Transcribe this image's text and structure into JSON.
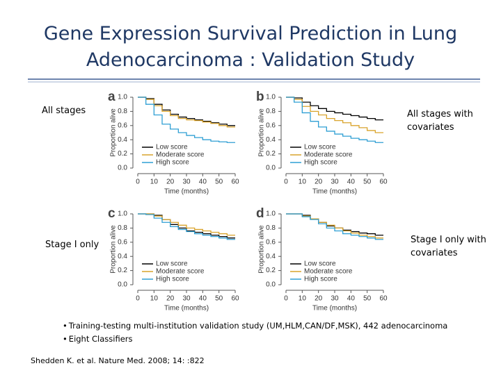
{
  "title": "Gene Expression Survival Prediction in Lung Adenocarcinoma : Validation Study",
  "bullets": [
    "Training-testing multi-institution validation study (UM,HLM,CAN/DF,MSK), 442 adenocarcinoma",
    "Eight Classifiers"
  ],
  "citation": "Shedden K. et al. Nature Med. 2008; 14: :822",
  "chart_data": [
    {
      "type": "line",
      "panel": "a",
      "title": "All stages",
      "xlabel": "Time (months)",
      "ylabel": "Proportion alive",
      "x": [
        0,
        5,
        10,
        15,
        20,
        25,
        30,
        35,
        40,
        45,
        50,
        55,
        60
      ],
      "series": [
        {
          "name": "Low score",
          "color": "#000000",
          "values": [
            1.0,
            0.98,
            0.9,
            0.82,
            0.76,
            0.72,
            0.7,
            0.68,
            0.66,
            0.64,
            0.62,
            0.6,
            0.6
          ]
        },
        {
          "name": "Moderate score",
          "color": "#d9a32b",
          "values": [
            1.0,
            0.97,
            0.88,
            0.8,
            0.74,
            0.7,
            0.68,
            0.67,
            0.65,
            0.63,
            0.6,
            0.58,
            0.58
          ]
        },
        {
          "name": "High score",
          "color": "#2e9fd4",
          "values": [
            1.0,
            0.9,
            0.75,
            0.62,
            0.55,
            0.5,
            0.46,
            0.43,
            0.4,
            0.38,
            0.37,
            0.36,
            0.36
          ]
        }
      ],
      "xlim": [
        0,
        60
      ],
      "xticks": [
        0,
        10,
        20,
        30,
        40,
        50,
        60
      ],
      "ylim": [
        0,
        1
      ],
      "yticks": [
        {
          "value": 0,
          "label": "0.0"
        },
        0.2,
        0.4,
        0.6,
        0.8,
        {
          "value": 1,
          "label": "1.0"
        }
      ],
      "grid": false,
      "step": true,
      "legend": "lower left"
    },
    {
      "type": "line",
      "panel": "b",
      "title": "All stages with covariates",
      "xlabel": "Time (months)",
      "ylabel": "Proportion alive",
      "x": [
        0,
        5,
        10,
        15,
        20,
        25,
        30,
        35,
        40,
        45,
        50,
        55,
        60
      ],
      "series": [
        {
          "name": "Low score",
          "color": "#000000",
          "values": [
            1.0,
            0.99,
            0.93,
            0.88,
            0.84,
            0.8,
            0.78,
            0.76,
            0.74,
            0.72,
            0.7,
            0.68,
            0.68
          ]
        },
        {
          "name": "Moderate score",
          "color": "#d9a32b",
          "values": [
            1.0,
            0.97,
            0.87,
            0.8,
            0.75,
            0.7,
            0.67,
            0.64,
            0.6,
            0.57,
            0.53,
            0.5,
            0.5
          ]
        },
        {
          "name": "High score",
          "color": "#2e9fd4",
          "values": [
            1.0,
            0.93,
            0.78,
            0.66,
            0.58,
            0.52,
            0.48,
            0.45,
            0.42,
            0.4,
            0.38,
            0.36,
            0.36
          ]
        }
      ],
      "xlim": [
        0,
        60
      ],
      "xticks": [
        0,
        10,
        20,
        30,
        40,
        50,
        60
      ],
      "ylim": [
        0,
        1
      ],
      "yticks": [
        {
          "value": 0,
          "label": "0.0"
        },
        0.2,
        0.4,
        0.6,
        0.8,
        {
          "value": 1,
          "label": "1.0"
        }
      ],
      "grid": false,
      "step": true,
      "legend": "lower left"
    },
    {
      "type": "line",
      "panel": "c",
      "title": "Stage I only",
      "xlabel": "Time (months)",
      "ylabel": "Proportion alive",
      "x": [
        0,
        5,
        10,
        15,
        20,
        25,
        30,
        35,
        40,
        45,
        50,
        55,
        60
      ],
      "series": [
        {
          "name": "Low score",
          "color": "#000000",
          "values": [
            1.0,
            1.0,
            0.98,
            0.92,
            0.85,
            0.8,
            0.76,
            0.74,
            0.72,
            0.7,
            0.68,
            0.66,
            0.66
          ]
        },
        {
          "name": "Moderate score",
          "color": "#d9a32b",
          "values": [
            1.0,
            1.0,
            0.97,
            0.92,
            0.88,
            0.84,
            0.8,
            0.78,
            0.76,
            0.74,
            0.72,
            0.7,
            0.7
          ]
        },
        {
          "name": "High score",
          "color": "#2e9fd4",
          "values": [
            1.0,
            0.99,
            0.94,
            0.88,
            0.82,
            0.78,
            0.75,
            0.72,
            0.7,
            0.68,
            0.66,
            0.64,
            0.64
          ]
        }
      ],
      "xlim": [
        0,
        60
      ],
      "xticks": [
        0,
        10,
        20,
        30,
        40,
        50,
        60
      ],
      "ylim": [
        0,
        1
      ],
      "yticks": [
        {
          "value": 0,
          "label": "0.0"
        },
        0.2,
        0.4,
        0.6,
        0.8,
        {
          "value": 1,
          "label": "1.0"
        }
      ],
      "grid": false,
      "step": true,
      "legend": "lower left"
    },
    {
      "type": "line",
      "panel": "d",
      "title": "Stage I only with covariates",
      "xlabel": "Time (months)",
      "ylabel": "Proportion alive",
      "x": [
        0,
        5,
        10,
        15,
        20,
        25,
        30,
        35,
        40,
        45,
        50,
        55,
        60
      ],
      "series": [
        {
          "name": "Low score",
          "color": "#000000",
          "values": [
            1.0,
            1.0,
            0.98,
            0.93,
            0.88,
            0.83,
            0.8,
            0.77,
            0.75,
            0.73,
            0.72,
            0.7,
            0.7
          ]
        },
        {
          "name": "Moderate score",
          "color": "#d9a32b",
          "values": [
            1.0,
            1.0,
            0.97,
            0.93,
            0.88,
            0.84,
            0.8,
            0.76,
            0.73,
            0.7,
            0.68,
            0.66,
            0.66
          ]
        },
        {
          "name": "High score",
          "color": "#2e9fd4",
          "values": [
            1.0,
            1.0,
            0.96,
            0.92,
            0.86,
            0.8,
            0.76,
            0.72,
            0.7,
            0.68,
            0.66,
            0.64,
            0.64
          ]
        }
      ],
      "xlim": [
        0,
        60
      ],
      "xticks": [
        0,
        10,
        20,
        30,
        40,
        50,
        60
      ],
      "ylim": [
        0,
        1
      ],
      "yticks": [
        {
          "value": 0,
          "label": "0.0"
        },
        0.2,
        0.4,
        0.6,
        0.8,
        {
          "value": 1,
          "label": "1.0"
        }
      ],
      "grid": false,
      "step": true,
      "legend": "lower left"
    }
  ]
}
